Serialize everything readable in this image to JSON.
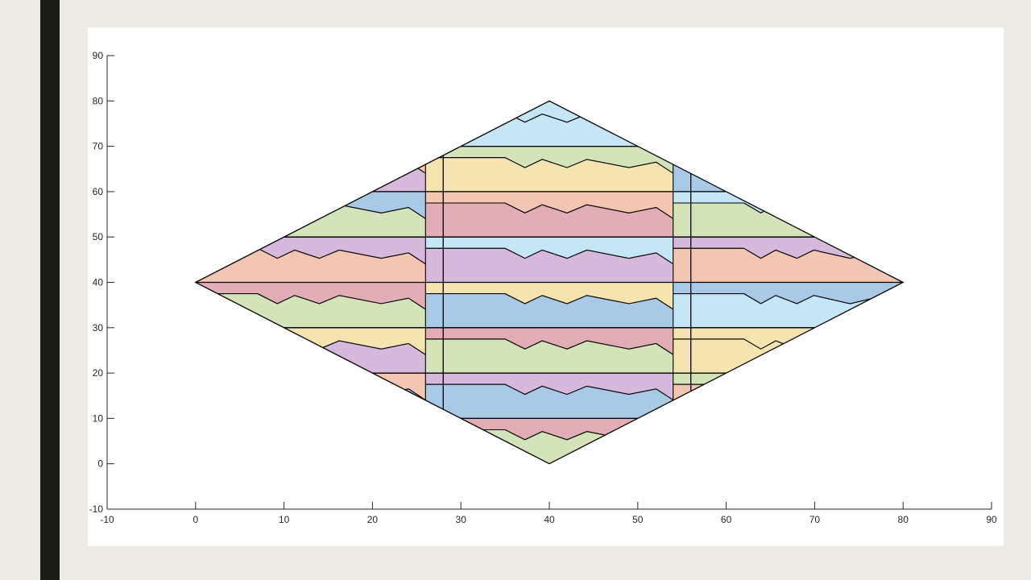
{
  "chart_data": {
    "type": "tiling",
    "title": "",
    "xlabel": "",
    "ylabel": "",
    "xlim": [
      -10,
      90
    ],
    "ylim": [
      -10,
      90
    ],
    "xticks": [
      -10,
      0,
      10,
      20,
      30,
      40,
      50,
      60,
      70,
      80,
      90
    ],
    "yticks": [
      -10,
      0,
      10,
      20,
      30,
      40,
      50,
      60,
      70,
      80,
      90
    ],
    "grid": false,
    "region": {
      "shape": "rhombus",
      "vertices": [
        [
          0,
          40
        ],
        [
          40,
          80
        ],
        [
          80,
          40
        ],
        [
          40,
          0
        ]
      ]
    },
    "column_boundaries_x": [
      28,
      56
    ],
    "row_boundaries_y": [
      0,
      10,
      20,
      30,
      40,
      50,
      60,
      70,
      80
    ],
    "palette": {
      "light_blue": "#c5e6f6",
      "yellow": "#f6e4b0",
      "purple": "#d6b9dd",
      "green": "#d3e4b9",
      "pink": "#e3adb6",
      "salmon": "#f2c6b0",
      "blue": "#a9cae7"
    },
    "columns": [
      {
        "x_range": [
          0,
          28
        ],
        "rows": [
          {
            "y": [
              10,
              20
            ],
            "colors": [
              "salmon",
              "blue"
            ]
          },
          {
            "y": [
              20,
              30
            ],
            "colors": [
              "yellow",
              "purple"
            ]
          },
          {
            "y": [
              30,
              40
            ],
            "colors": [
              "pink",
              "green"
            ]
          },
          {
            "y": [
              40,
              50
            ],
            "colors": [
              "purple",
              "salmon"
            ]
          },
          {
            "y": [
              50,
              60
            ],
            "colors": [
              "blue",
              "green"
            ]
          },
          {
            "y": [
              60,
              70
            ],
            "colors": [
              "salmon",
              "purple"
            ]
          }
        ]
      },
      {
        "x_range": [
          28,
          56
        ],
        "rows": [
          {
            "y": [
              0,
              10
            ],
            "colors": [
              "pink",
              "green"
            ]
          },
          {
            "y": [
              10,
              20
            ],
            "colors": [
              "purple",
              "blue"
            ]
          },
          {
            "y": [
              20,
              30
            ],
            "colors": [
              "pink",
              "green"
            ]
          },
          {
            "y": [
              30,
              40
            ],
            "colors": [
              "yellow",
              "blue"
            ]
          },
          {
            "y": [
              40,
              50
            ],
            "colors": [
              "light_blue",
              "purple"
            ]
          },
          {
            "y": [
              50,
              60
            ],
            "colors": [
              "salmon",
              "pink"
            ]
          },
          {
            "y": [
              60,
              70
            ],
            "colors": [
              "green",
              "yellow"
            ]
          },
          {
            "y": [
              70,
              80
            ],
            "colors": [
              "light_blue",
              "light_blue"
            ]
          }
        ]
      },
      {
        "x_range": [
          56,
          80
        ],
        "rows": [
          {
            "y": [
              10,
              20
            ],
            "colors": [
              "green",
              "salmon"
            ]
          },
          {
            "y": [
              20,
              30
            ],
            "colors": [
              "yellow",
              "yellow"
            ]
          },
          {
            "y": [
              30,
              40
            ],
            "colors": [
              "blue",
              "light_blue"
            ]
          },
          {
            "y": [
              40,
              50
            ],
            "colors": [
              "purple",
              "salmon"
            ]
          },
          {
            "y": [
              50,
              60
            ],
            "colors": [
              "light_blue",
              "green"
            ]
          },
          {
            "y": [
              60,
              70
            ],
            "colors": [
              "pink",
              "blue"
            ]
          }
        ]
      }
    ]
  }
}
